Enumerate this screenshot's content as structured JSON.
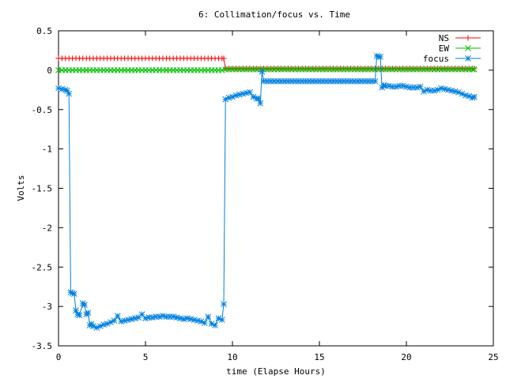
{
  "chart_data": {
    "type": "line",
    "title": "6: Collimation/focus vs. Time",
    "xlabel": "time (Elapse Hours)",
    "ylabel": "Volts",
    "xlim": [
      0,
      25
    ],
    "ylim": [
      -3.5,
      0.5
    ],
    "x_ticks": [
      "0",
      "5",
      "10",
      "15",
      "20",
      "25"
    ],
    "y_ticks": [
      "0.5",
      "0",
      "-0.5",
      "-1",
      "-1.5",
      "-2",
      "-2.5",
      "-3",
      "-3.5"
    ],
    "grid": false,
    "legend_position": "top-right",
    "series": [
      {
        "name": "NS",
        "color": "#ff0000",
        "marker": "plus",
        "x": [
          0,
          0.2,
          0.4,
          0.6,
          0.8,
          1.0,
          1.2,
          1.4,
          1.6,
          1.8,
          2.0,
          2.2,
          2.4,
          2.6,
          2.8,
          3.0,
          3.2,
          3.4,
          3.6,
          3.8,
          4.0,
          4.2,
          4.4,
          4.6,
          4.8,
          5.0,
          5.2,
          5.4,
          5.6,
          5.8,
          6.0,
          6.2,
          6.4,
          6.6,
          6.8,
          7.0,
          7.2,
          7.4,
          7.6,
          7.8,
          8.0,
          8.2,
          8.4,
          8.6,
          8.8,
          9.0,
          9.2,
          9.4,
          9.5,
          9.6,
          9.8,
          10.0,
          10.2,
          10.4,
          10.6,
          10.8,
          11.0,
          11.2,
          11.4,
          11.6,
          11.8,
          12.0,
          12.2,
          12.4,
          12.6,
          12.8,
          13.0,
          13.2,
          13.4,
          13.6,
          13.8,
          14.0,
          14.2,
          14.4,
          14.6,
          14.8,
          15.0,
          15.2,
          15.4,
          15.6,
          15.8,
          16.0,
          16.2,
          16.4,
          16.6,
          16.8,
          17.0,
          17.2,
          17.4,
          17.6,
          17.8,
          18.0,
          18.2,
          18.4,
          18.6,
          18.8,
          19.0,
          19.2,
          19.4,
          19.6,
          19.8,
          20.0,
          20.2,
          20.4,
          20.6,
          20.8,
          21.0,
          21.2,
          21.4,
          21.6,
          21.8,
          22.0,
          22.2,
          22.4,
          22.6,
          22.8,
          23.0,
          23.2,
          23.4,
          23.6,
          23.8,
          23.9
        ],
        "y": [
          0.15,
          0.15,
          0.15,
          0.15,
          0.15,
          0.15,
          0.15,
          0.15,
          0.15,
          0.15,
          0.15,
          0.15,
          0.15,
          0.15,
          0.15,
          0.15,
          0.15,
          0.15,
          0.15,
          0.15,
          0.15,
          0.15,
          0.15,
          0.15,
          0.15,
          0.15,
          0.15,
          0.15,
          0.15,
          0.15,
          0.15,
          0.15,
          0.15,
          0.15,
          0.15,
          0.15,
          0.15,
          0.15,
          0.15,
          0.15,
          0.15,
          0.15,
          0.15,
          0.15,
          0.15,
          0.15,
          0.15,
          0.15,
          0.15,
          0.02,
          0.02,
          0.02,
          0.02,
          0.02,
          0.02,
          0.02,
          0.02,
          0.02,
          0.02,
          0.02,
          0.02,
          0.02,
          0.02,
          0.02,
          0.02,
          0.02,
          0.02,
          0.02,
          0.02,
          0.02,
          0.02,
          0.02,
          0.02,
          0.02,
          0.02,
          0.02,
          0.02,
          0.02,
          0.02,
          0.02,
          0.02,
          0.02,
          0.02,
          0.02,
          0.02,
          0.02,
          0.02,
          0.02,
          0.02,
          0.02,
          0.02,
          0.02,
          0.02,
          0.02,
          0.02,
          0.02,
          0.02,
          0.02,
          0.02,
          0.02,
          0.02,
          0.02,
          0.02,
          0.02,
          0.02,
          0.02,
          0.02,
          0.02,
          0.02,
          0.02,
          0.02,
          0.02,
          0.02,
          0.02,
          0.02,
          0.02,
          0.02,
          0.02,
          0.02,
          0.02,
          0.02,
          0.02
        ]
      },
      {
        "name": "EW",
        "color": "#00c000",
        "marker": "cross",
        "x": [
          0,
          0.2,
          0.4,
          0.6,
          0.8,
          1.0,
          1.2,
          1.4,
          1.6,
          1.8,
          2.0,
          2.2,
          2.4,
          2.6,
          2.8,
          3.0,
          3.2,
          3.4,
          3.6,
          3.8,
          4.0,
          4.2,
          4.4,
          4.6,
          4.8,
          5.0,
          5.2,
          5.4,
          5.6,
          5.8,
          6.0,
          6.2,
          6.4,
          6.6,
          6.8,
          7.0,
          7.2,
          7.4,
          7.6,
          7.8,
          8.0,
          8.2,
          8.4,
          8.6,
          8.8,
          9.0,
          9.2,
          9.4,
          9.6,
          9.8,
          10.0,
          10.2,
          10.4,
          10.6,
          10.8,
          11.0,
          11.2,
          11.4,
          11.6,
          11.8,
          12.0,
          12.2,
          12.4,
          12.6,
          12.8,
          13.0,
          13.2,
          13.4,
          13.6,
          13.8,
          14.0,
          14.2,
          14.4,
          14.6,
          14.8,
          15.0,
          15.2,
          15.4,
          15.6,
          15.8,
          16.0,
          16.2,
          16.4,
          16.6,
          16.8,
          17.0,
          17.2,
          17.4,
          17.6,
          17.8,
          18.0,
          18.2,
          18.4,
          18.6,
          18.8,
          19.0,
          19.2,
          19.4,
          19.6,
          19.8,
          20.0,
          20.2,
          20.4,
          20.6,
          20.8,
          21.0,
          21.2,
          21.4,
          21.6,
          21.8,
          22.0,
          22.2,
          22.4,
          22.6,
          22.8,
          23.0,
          23.2,
          23.4,
          23.6,
          23.8,
          23.9
        ],
        "y": [
          0.0,
          0.0,
          0.0,
          0.0,
          0.0,
          0.0,
          0.0,
          0.0,
          0.0,
          0.0,
          0.0,
          0.0,
          0.0,
          0.0,
          0.0,
          0.0,
          0.0,
          0.0,
          0.0,
          0.0,
          0.0,
          0.0,
          0.0,
          0.0,
          0.0,
          0.0,
          0.0,
          0.0,
          0.0,
          0.0,
          0.0,
          0.0,
          0.0,
          0.0,
          0.0,
          0.0,
          0.0,
          0.0,
          0.0,
          0.0,
          0.0,
          0.0,
          0.0,
          0.0,
          0.0,
          0.0,
          0.0,
          0.0,
          0.01,
          0.01,
          0.01,
          0.01,
          0.01,
          0.01,
          0.01,
          0.01,
          0.01,
          0.01,
          0.01,
          0.01,
          0.01,
          0.01,
          0.01,
          0.01,
          0.01,
          0.01,
          0.01,
          0.01,
          0.01,
          0.01,
          0.01,
          0.01,
          0.01,
          0.01,
          0.01,
          0.01,
          0.01,
          0.01,
          0.01,
          0.01,
          0.01,
          0.01,
          0.01,
          0.01,
          0.01,
          0.01,
          0.01,
          0.01,
          0.01,
          0.01,
          0.01,
          0.01,
          0.01,
          0.01,
          0.01,
          0.01,
          0.01,
          0.01,
          0.01,
          0.01,
          0.01,
          0.01,
          0.01,
          0.01,
          0.01,
          0.01,
          0.01,
          0.01,
          0.01,
          0.01,
          0.01,
          0.01,
          0.01,
          0.01,
          0.01,
          0.01,
          0.01,
          0.01,
          0.01,
          0.01,
          0.01
        ]
      },
      {
        "name": "focus",
        "color": "#0080e0",
        "marker": "star",
        "x": [
          0,
          0.2,
          0.4,
          0.5,
          0.6,
          0.7,
          0.8,
          0.9,
          1.0,
          1.1,
          1.2,
          1.4,
          1.5,
          1.6,
          1.7,
          1.8,
          1.9,
          2.0,
          2.2,
          2.4,
          2.6,
          2.8,
          3.0,
          3.2,
          3.4,
          3.6,
          3.8,
          4.0,
          4.2,
          4.4,
          4.6,
          4.8,
          5.0,
          5.2,
          5.4,
          5.6,
          5.8,
          6.0,
          6.2,
          6.4,
          6.6,
          6.8,
          7.0,
          7.2,
          7.4,
          7.6,
          7.8,
          8.0,
          8.2,
          8.4,
          8.6,
          8.8,
          9.0,
          9.2,
          9.4,
          9.5,
          9.6,
          9.8,
          10.0,
          10.2,
          10.4,
          10.6,
          10.8,
          11.0,
          11.2,
          11.4,
          11.5,
          11.6,
          11.7,
          11.8,
          12.0,
          12.2,
          12.4,
          12.6,
          12.8,
          13.0,
          13.2,
          13.4,
          13.6,
          13.8,
          14.0,
          14.2,
          14.4,
          14.6,
          14.8,
          15.0,
          15.2,
          15.4,
          15.6,
          15.8,
          16.0,
          16.2,
          16.4,
          16.6,
          16.8,
          17.0,
          17.2,
          17.4,
          17.6,
          17.8,
          18.0,
          18.2,
          18.3,
          18.4,
          18.5,
          18.6,
          18.7,
          18.8,
          19.0,
          19.2,
          19.4,
          19.6,
          19.8,
          20.0,
          20.2,
          20.4,
          20.6,
          20.8,
          21.0,
          21.2,
          21.4,
          21.6,
          21.8,
          22.0,
          22.2,
          22.4,
          22.6,
          22.8,
          23.0,
          23.2,
          23.4,
          23.6,
          23.8,
          23.9
        ],
        "y": [
          -0.23,
          -0.24,
          -0.25,
          -0.26,
          -0.3,
          -2.82,
          -2.83,
          -2.84,
          -3.05,
          -3.1,
          -3.11,
          -2.96,
          -2.98,
          -3.1,
          -3.08,
          -3.24,
          -3.22,
          -3.25,
          -3.27,
          -3.25,
          -3.23,
          -3.22,
          -3.2,
          -3.18,
          -3.12,
          -3.19,
          -3.18,
          -3.17,
          -3.16,
          -3.15,
          -3.14,
          -3.1,
          -3.15,
          -3.14,
          -3.14,
          -3.13,
          -3.13,
          -3.12,
          -3.13,
          -3.13,
          -3.13,
          -3.14,
          -3.15,
          -3.16,
          -3.15,
          -3.16,
          -3.17,
          -3.18,
          -3.19,
          -3.21,
          -3.13,
          -3.22,
          -3.24,
          -3.15,
          -3.17,
          -2.97,
          -0.37,
          -0.35,
          -0.34,
          -0.32,
          -0.31,
          -0.3,
          -0.29,
          -0.28,
          -0.34,
          -0.36,
          -0.36,
          -0.42,
          -0.02,
          -0.14,
          -0.14,
          -0.14,
          -0.14,
          -0.14,
          -0.14,
          -0.14,
          -0.14,
          -0.14,
          -0.14,
          -0.14,
          -0.14,
          -0.14,
          -0.14,
          -0.14,
          -0.14,
          -0.14,
          -0.14,
          -0.14,
          -0.14,
          -0.14,
          -0.14,
          -0.14,
          -0.14,
          -0.14,
          -0.14,
          -0.14,
          -0.14,
          -0.14,
          -0.14,
          -0.14,
          -0.14,
          -0.14,
          0.18,
          0.17,
          0.17,
          -0.22,
          -0.19,
          -0.2,
          -0.2,
          -0.21,
          -0.21,
          -0.2,
          -0.2,
          -0.21,
          -0.22,
          -0.22,
          -0.22,
          -0.21,
          -0.27,
          -0.25,
          -0.26,
          -0.26,
          -0.25,
          -0.23,
          -0.24,
          -0.25,
          -0.26,
          -0.27,
          -0.28,
          -0.3,
          -0.32,
          -0.33,
          -0.35,
          -0.34
        ]
      }
    ]
  }
}
